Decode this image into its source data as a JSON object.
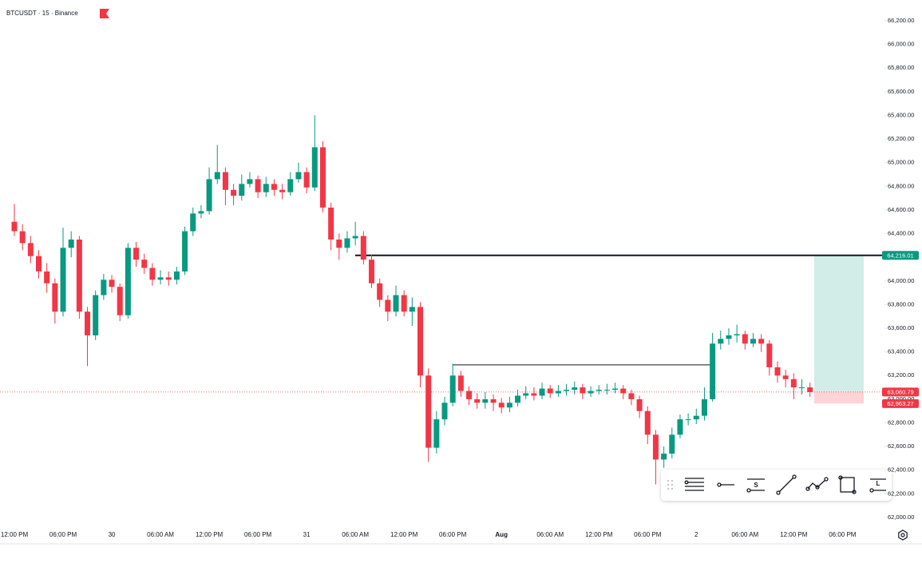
{
  "chart_data": {
    "type": "candlestick",
    "title": "BTCUSDT · 15 · Binance",
    "up_color": "#089981",
    "down_color": "#f23645",
    "categories": [
      "12:00 PM",
      null,
      null,
      null,
      null,
      null,
      "06:00 PM",
      null,
      null,
      null,
      null,
      null,
      "30",
      null,
      null,
      null,
      null,
      null,
      "06:00 AM",
      null,
      null,
      null,
      null,
      null,
      "12:00 PM",
      null,
      null,
      null,
      null,
      null,
      "06:00 PM",
      null,
      null,
      null,
      null,
      null,
      "31",
      null,
      null,
      null,
      null,
      null,
      "06:00 AM",
      null,
      null,
      null,
      null,
      null,
      "12:00 PM",
      null,
      null,
      null,
      null,
      null,
      "06:00 PM",
      null,
      null,
      null,
      null,
      null,
      "Aug",
      null,
      null,
      null,
      null,
      null,
      "06:00 AM",
      null,
      null,
      null,
      null,
      null,
      "12:00 PM",
      null,
      null,
      null,
      null,
      null,
      "06:00 PM",
      null,
      null,
      null,
      null,
      null,
      "2",
      null,
      null,
      null,
      null,
      null,
      "06:00 AM",
      null,
      null,
      null,
      null,
      null,
      "12:00 PM",
      null,
      null,
      null,
      null,
      null,
      "06:00 PM"
    ],
    "open": [
      64500,
      64420,
      64320,
      64210,
      64080,
      63980,
      63740,
      64280,
      64350,
      63740,
      63540,
      63880,
      64010,
      63950,
      63710,
      64280,
      64180,
      64110,
      64010,
      64030,
      64010,
      64080,
      64420,
      64570,
      64590,
      64860,
      64920,
      64770,
      64720,
      64820,
      64860,
      64750,
      64820,
      64770,
      64750,
      64860,
      64920,
      64790,
      65130,
      64620,
      64350,
      64280,
      64360,
      64380,
      64180,
      63980,
      63840,
      63740,
      63880,
      63740,
      63780,
      63200,
      62590,
      62830,
      62970,
      63200,
      63070,
      63000,
      62970,
      63000,
      62970,
      62930,
      62970,
      63030,
      63050,
      63030,
      63090,
      63050,
      63070,
      63080,
      63100,
      63050,
      63070,
      63080,
      63080,
      63090,
      63050,
      63000,
      62900,
      62700,
      62490,
      62540,
      62700,
      62830,
      62830,
      62860,
      63000,
      63470,
      63510,
      63540,
      63550,
      63470,
      63510,
      63470,
      63270,
      63200,
      63170,
      63100,
      63100,
      null,
      null,
      null,
      null
    ],
    "high": [
      64650,
      64480,
      64380,
      64260,
      64150,
      64020,
      64450,
      64420,
      64380,
      63780,
      63920,
      64060,
      64050,
      63980,
      64320,
      64330,
      64230,
      64150,
      64090,
      64080,
      64120,
      64460,
      64620,
      64640,
      64960,
      65150,
      64960,
      64820,
      64900,
      64920,
      64890,
      64880,
      64860,
      64820,
      64920,
      65000,
      64960,
      65400,
      65180,
      64660,
      64400,
      64420,
      64500,
      64420,
      64220,
      64020,
      63880,
      63960,
      63920,
      63860,
      63820,
      63260,
      62900,
      63020,
      63300,
      63240,
      63110,
      63050,
      63060,
      63040,
      63010,
      63020,
      63080,
      63110,
      63100,
      63140,
      63120,
      63120,
      63130,
      63150,
      63130,
      63110,
      63120,
      63130,
      63140,
      63120,
      63080,
      63030,
      62940,
      62740,
      62600,
      62760,
      62870,
      62880,
      62920,
      63100,
      63560,
      63580,
      63600,
      63630,
      63580,
      63560,
      63550,
      63500,
      63320,
      63250,
      63220,
      63170,
      63140,
      null,
      null,
      null,
      null
    ],
    "low": [
      64380,
      64260,
      64150,
      64020,
      63900,
      63640,
      63700,
      64200,
      63680,
      63280,
      63500,
      63840,
      63900,
      63660,
      63680,
      64120,
      64060,
      63960,
      63970,
      63960,
      63970,
      64050,
      64380,
      64530,
      64560,
      64820,
      64640,
      64640,
      64680,
      64790,
      64700,
      64710,
      64720,
      64690,
      64720,
      64830,
      64740,
      64760,
      64580,
      64260,
      64180,
      64240,
      64300,
      64140,
      63940,
      63780,
      63660,
      63700,
      63700,
      63620,
      63100,
      62470,
      62540,
      62780,
      62940,
      63020,
      62950,
      62920,
      62920,
      62900,
      62880,
      62890,
      62940,
      63000,
      62990,
      63000,
      63010,
      63020,
      63030,
      63040,
      63000,
      63020,
      63040,
      63040,
      63050,
      63000,
      62950,
      62840,
      62620,
      62280,
      62420,
      62500,
      62670,
      62780,
      62790,
      62820,
      62980,
      63420,
      63460,
      63480,
      63420,
      63440,
      63400,
      63200,
      63140,
      63100,
      63000,
      63040,
      63020,
      null,
      null,
      null,
      null
    ],
    "close": [
      64420,
      64320,
      64210,
      64080,
      63980,
      63740,
      64280,
      64350,
      63740,
      63540,
      63880,
      64010,
      63950,
      63710,
      64280,
      64180,
      64110,
      64010,
      64030,
      64010,
      64080,
      64420,
      64570,
      64590,
      64860,
      64920,
      64770,
      64720,
      64820,
      64860,
      64750,
      64820,
      64770,
      64750,
      64860,
      64920,
      64790,
      65130,
      64620,
      64350,
      64280,
      64360,
      64380,
      64180,
      63980,
      63840,
      63740,
      63880,
      63740,
      63780,
      63200,
      62590,
      62830,
      62970,
      63200,
      63070,
      63000,
      62970,
      63000,
      62970,
      62930,
      62970,
      63030,
      63050,
      63030,
      63090,
      63050,
      63070,
      63080,
      63100,
      63050,
      63070,
      63080,
      63080,
      63090,
      63050,
      63000,
      62900,
      62700,
      62490,
      62540,
      62700,
      62830,
      62830,
      62860,
      63000,
      63470,
      63510,
      63540,
      63550,
      63470,
      63510,
      63470,
      63270,
      63200,
      63170,
      63100,
      63100,
      63060,
      null,
      null,
      null,
      null
    ],
    "ylim": [
      61919,
      66375
    ],
    "yticks": [
      {
        "value": 62000,
        "label": "62,000.00"
      },
      {
        "value": 62200,
        "label": "62,200.00"
      },
      {
        "value": 62400,
        "label": "62,400.00"
      },
      {
        "value": 62600,
        "label": "62,600.00"
      },
      {
        "value": 62800,
        "label": "62,800.00"
      },
      {
        "value": 63000,
        "label": "63,000.00"
      },
      {
        "value": 63200,
        "label": "63,200.00"
      },
      {
        "value": 63400,
        "label": "63,400.00"
      },
      {
        "value": 63600,
        "label": "63,600.00"
      },
      {
        "value": 63800,
        "label": "63,800.00"
      },
      {
        "value": 64000,
        "label": "64,000.00"
      },
      {
        "value": 64200,
        "label": "64,200.00"
      },
      {
        "value": 64400,
        "label": "64,400.00"
      },
      {
        "value": 64600,
        "label": "64,600.00"
      },
      {
        "value": 64800,
        "label": "64,800.00"
      },
      {
        "value": 65000,
        "label": "65,000.00"
      },
      {
        "value": 65200,
        "label": "65,200.00"
      },
      {
        "value": 65400,
        "label": "65,400.00"
      },
      {
        "value": 65600,
        "label": "65,600.00"
      },
      {
        "value": 65800,
        "label": "65,800.00"
      },
      {
        "value": 66000,
        "label": "66,000.00"
      },
      {
        "value": 66200,
        "label": "66,200.00"
      }
    ],
    "target": {
      "value": 64216.01,
      "label": "64,216.01",
      "color": "#089981"
    },
    "last_price": {
      "value": 63060.79,
      "label": "63,060.79",
      "color": "#f23645"
    },
    "stop": {
      "value": 62963.27,
      "label": "62,963.27",
      "color": "#f23645"
    },
    "level_line": 63290,
    "toolbar": [
      "S",
      "L"
    ]
  }
}
